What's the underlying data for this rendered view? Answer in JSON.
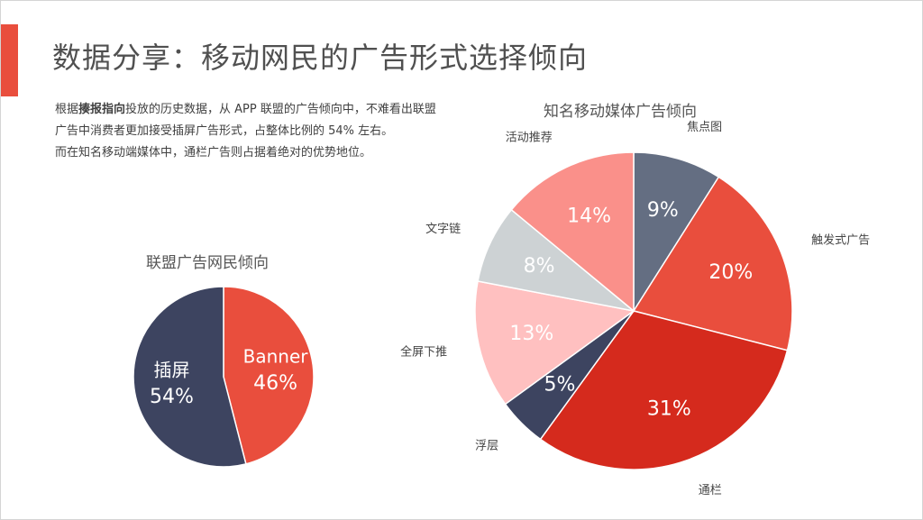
{
  "header": {
    "title": "数据分享：移动网民的广告形式选择倾向",
    "accent_color": "#E94E3D"
  },
  "description": {
    "line1_prefix": "根据",
    "line1_bold": "揍报指向",
    "line1_suffix": "投放的历史数据，从 APP 联盟的广告倾向中，不难看出联盟广告中消费者更加接受插屏广告形式，占整体比例的 54% 左右。",
    "line2": "而在知名移动端媒体中，通栏广告则占据着绝对的优势地位。"
  },
  "chart_data": [
    {
      "type": "pie",
      "title": "联盟广告网民倾向",
      "slices": [
        {
          "label": "Banner",
          "value": 46,
          "display": "46%",
          "color": "#E94E3D",
          "text_color": "#ffffff"
        },
        {
          "label": "插屏",
          "value": 54,
          "display": "54%",
          "color": "#3D4460",
          "text_color": "#ffffff"
        }
      ]
    },
    {
      "type": "pie",
      "title": "知名移动媒体广告倾向",
      "slices": [
        {
          "label": "焦点图",
          "value": 9,
          "display": "9%",
          "color": "#646E82",
          "text_color": "#ffffff"
        },
        {
          "label": "触发式广告",
          "value": 20,
          "display": "20%",
          "color": "#E94E3D",
          "text_color": "#ffffff"
        },
        {
          "label": "通栏",
          "value": 31,
          "display": "31%",
          "color": "#D52A1D",
          "text_color": "#ffffff"
        },
        {
          "label": "浮层",
          "value": 5,
          "display": "5%",
          "color": "#3D4460",
          "text_color": "#ffffff"
        },
        {
          "label": "全屏下推",
          "value": 13,
          "display": "13%",
          "color": "#FFC0C0",
          "text_color": "#ffffff"
        },
        {
          "label": "文字链",
          "value": 8,
          "display": "8%",
          "color": "#CDD2D4",
          "text_color": "#ffffff"
        },
        {
          "label": "活动推荐",
          "value": 14,
          "display": "14%",
          "color": "#FA908A",
          "text_color": "#ffffff"
        }
      ]
    }
  ]
}
